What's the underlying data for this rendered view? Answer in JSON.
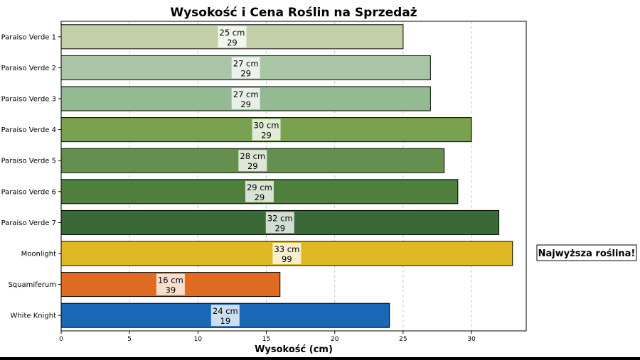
{
  "chart_data": {
    "type": "bar",
    "orientation": "horizontal",
    "title": "Wysokość i Cena Roślin na Sprzedaż",
    "xlabel": "Wysokość (cm)",
    "ylabel": "",
    "xlim": [
      0,
      34
    ],
    "xticks": [
      "0",
      "5",
      "10",
      "15",
      "20",
      "25",
      "30"
    ],
    "grid": "x-dashed",
    "categories": [
      "Paraiso Verde 1",
      "Paraiso Verde 2",
      "Paraiso Verde 3",
      "Paraiso Verde 4",
      "Paraiso Verde 5",
      "Paraiso Verde 6",
      "Paraiso Verde 7",
      "Moonlight",
      "Squamiferum",
      "White Knight"
    ],
    "values": [
      25,
      27,
      27,
      30,
      28,
      29,
      32,
      33,
      16,
      24
    ],
    "height_labels": [
      "25 cm",
      "27 cm",
      "27 cm",
      "30 cm",
      "28 cm",
      "29 cm",
      "32 cm",
      "33 cm",
      "16 cm",
      "24 cm"
    ],
    "price_labels": [
      "29",
      "29",
      "29",
      "29",
      "29",
      "29",
      "29",
      "99",
      "39",
      "19"
    ],
    "colors": [
      "#c2cfa8",
      "#a8c5a6",
      "#93ba92",
      "#78a250",
      "#648f4c",
      "#4f7f3c",
      "#396937",
      "#e0b823",
      "#e06b22",
      "#1a68b5"
    ],
    "annotation": "Najwyższa roślina!"
  }
}
